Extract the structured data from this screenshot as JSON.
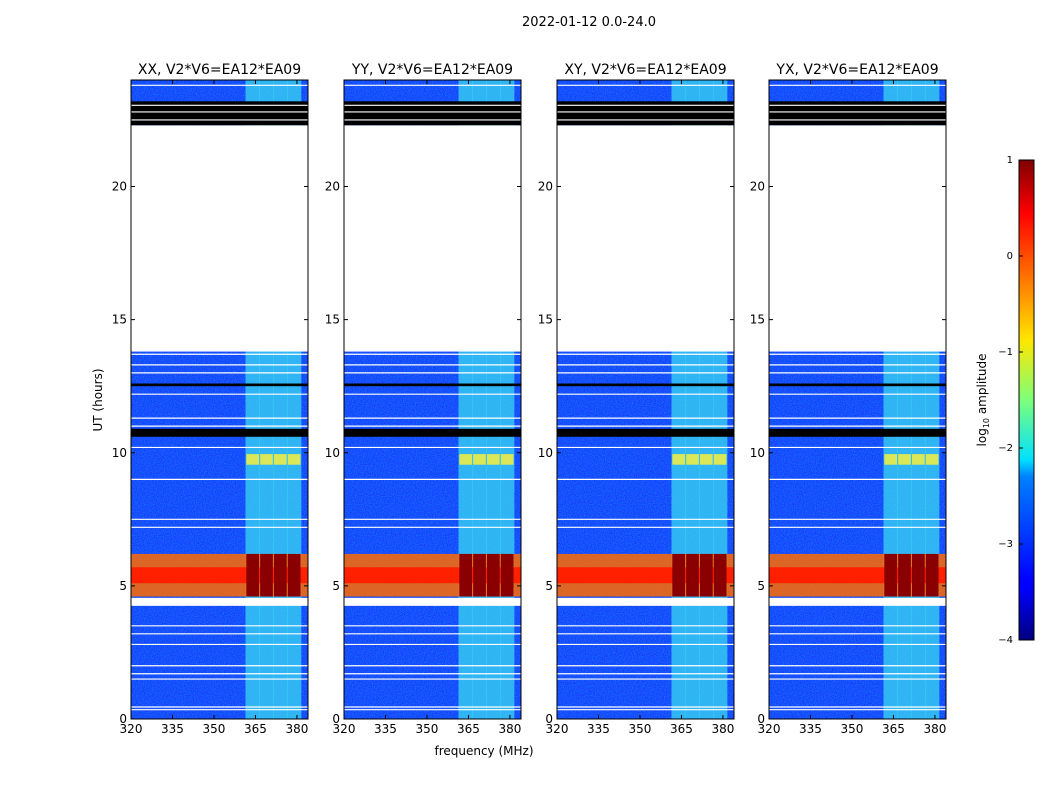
{
  "figure": {
    "suptitle": "2022-01-12 0.0-24.0",
    "xlabel": "frequency (MHz)",
    "ylabel": "UT (hours)",
    "colorbar": {
      "label_prefix": "log",
      "label_sub": "10",
      "label_suffix": " amplitude",
      "range": [
        -4,
        1
      ],
      "ticks": [
        "1",
        "0",
        "−1",
        "−2",
        "−3",
        "−4"
      ],
      "tick_values": [
        1,
        0,
        -1,
        -2,
        -3,
        -4
      ],
      "colormap": "jet"
    }
  },
  "chart_data": {
    "type": "heatmap",
    "x_ticks": [
      "320",
      "335",
      "350",
      "365",
      "380"
    ],
    "x_tick_values": [
      320,
      335,
      350,
      365,
      380
    ],
    "xlim": [
      320,
      384
    ],
    "y_ticks": [
      "0",
      "5",
      "10",
      "15",
      "20"
    ],
    "y_tick_values": [
      0,
      5,
      10,
      15,
      20
    ],
    "ylim": [
      0,
      24
    ],
    "panels": [
      {
        "title": "XX, V2*V6=EA12*EA09"
      },
      {
        "title": "YY, V2*V6=EA12*EA09"
      },
      {
        "title": "XY, V2*V6=EA12*EA09"
      },
      {
        "title": "YX, V2*V6=EA12*EA09"
      }
    ],
    "data_gap_hours": [
      13.8,
      22.3
    ],
    "flagged_black_hours": [
      [
        22.3,
        23.2
      ],
      [
        10.6,
        10.9
      ],
      [
        12.5,
        12.6
      ]
    ],
    "rfi_band_mhz": [
      361,
      379
    ],
    "rfi_channel_centers_mhz": [
      364,
      369,
      374,
      379
    ],
    "strong_emission_hours": [
      4.6,
      6.2
    ],
    "background_log_amplitude": -3.2,
    "rfi_log_amplitude": -2.0,
    "peak_log_amplitude": 1.0
  }
}
